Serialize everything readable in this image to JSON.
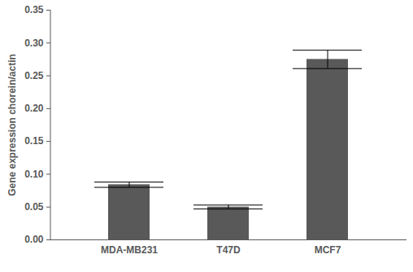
{
  "chart_data": {
    "type": "bar",
    "y_label": "Gene expression chorein/actin",
    "categories": [
      "MDA-MB231",
      "T47D",
      "MCF7"
    ],
    "values": [
      0.084,
      0.05,
      0.275
    ],
    "errors": [
      0.004,
      0.003,
      0.014
    ],
    "color": "#595959",
    "ylim": [
      0,
      0.35
    ],
    "yticks": [
      {
        "value": 0,
        "label": "0.00"
      },
      {
        "value": 0.05,
        "label": "0.05"
      },
      {
        "value": 0.1,
        "label": "0.10"
      },
      {
        "value": 0.15,
        "label": "0.15"
      },
      {
        "value": 0.2,
        "label": "0.20"
      },
      {
        "value": 0.25,
        "label": "0.25"
      },
      {
        "value": 0.3,
        "label": "0.30"
      },
      {
        "value": 0.35,
        "label": "0.35"
      }
    ],
    "grid": false
  }
}
